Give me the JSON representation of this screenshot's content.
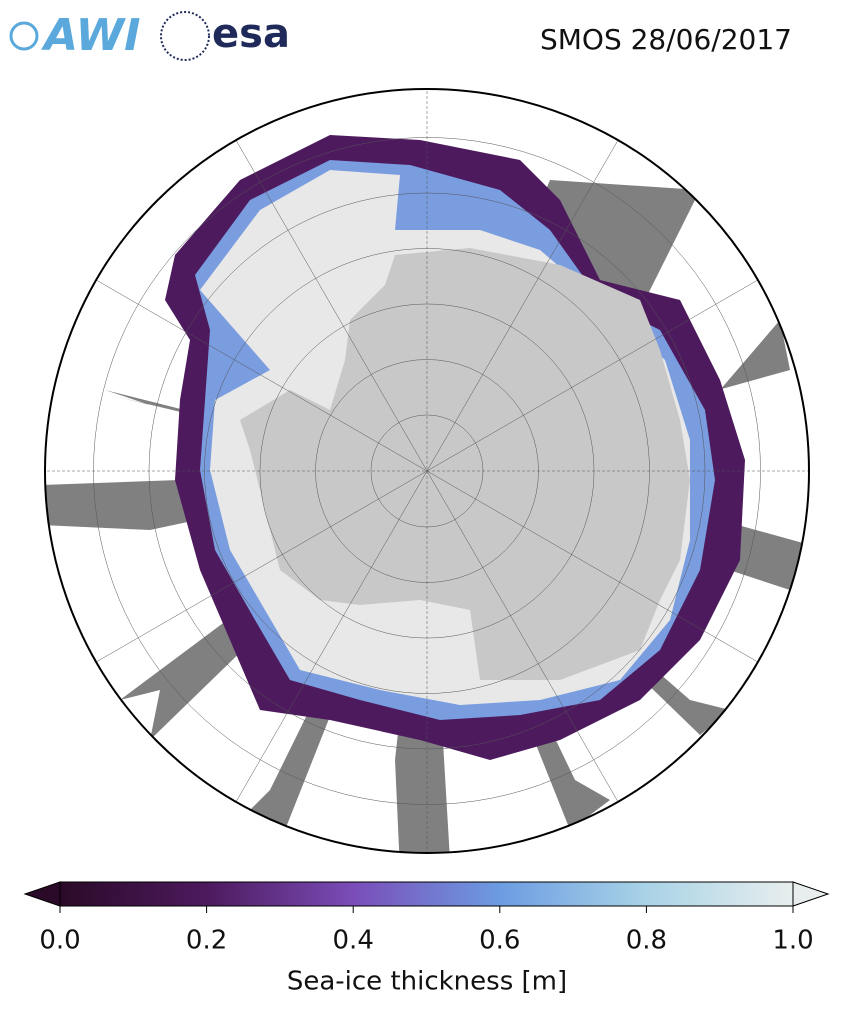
{
  "header": {
    "logos": [
      "AWI",
      "esa"
    ],
    "title": "SMOS 28/06/2017"
  },
  "colorbar": {
    "label": "Sea-ice thickness [m]",
    "lim": [
      0,
      1
    ],
    "ticks": [
      {
        "value": 0,
        "label": "0.0"
      },
      0.2,
      0.4,
      0.6,
      0.8,
      {
        "value": 1,
        "label": "1.0"
      }
    ],
    "colors": [
      "#2a0a28",
      "#4d1a5e",
      "#7a4db8",
      "#6c9ce2",
      "#a9d3e6",
      "#e8eeee"
    ]
  }
}
